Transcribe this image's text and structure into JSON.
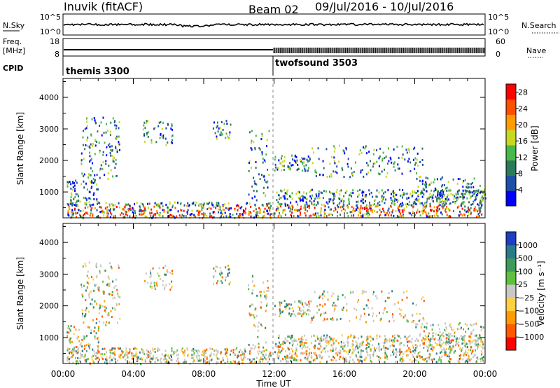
{
  "header": {
    "station": "Inuvik (fitACF)",
    "beam": "Beam 02",
    "date_range": "09/Jul/2016 - 10/Jul/2016"
  },
  "nsky_panel": {
    "label": "N.Sky",
    "right_label": "N.Search",
    "left_ticks": [
      "10^5",
      "10^0"
    ],
    "right_ticks": [
      "10^5",
      "10^0"
    ]
  },
  "freq_panel": {
    "label_lines": [
      "Freq.",
      "[MHz]"
    ],
    "left_ticks": [
      "18",
      "8"
    ],
    "right_ticks": [
      "60",
      "0"
    ],
    "right_label": "Nave"
  },
  "cpid_panel": {
    "label": "CPID",
    "segments": [
      {
        "name": "themis 3300",
        "start_hour": 0,
        "end_hour": 12
      },
      {
        "name": "twofsound 3503",
        "start_hour": 12,
        "end_hour": 24
      }
    ]
  },
  "chart_data": [
    {
      "type": "heatmap",
      "quantity": "Power",
      "ylabel": "Slant Range [km]",
      "ylim": [
        180,
        4600
      ],
      "yticks": [
        "1000",
        "2000",
        "3000",
        "4000"
      ],
      "xlim_hours": [
        0,
        24
      ],
      "colorbar": {
        "label": "Power [dB]",
        "ticks": [
          "4",
          "8",
          "12",
          "16",
          "20",
          "24",
          "28"
        ],
        "range": [
          0,
          30
        ],
        "colors": [
          "#0000ff",
          "#1e4fa8",
          "#2d7a5a",
          "#47b84a",
          "#c8d820",
          "#ff9a00",
          "#ff5000",
          "#ff0000"
        ]
      }
    },
    {
      "type": "heatmap",
      "quantity": "Velocity",
      "ylabel": "Slant Range [km]",
      "ylim": [
        180,
        4600
      ],
      "yticks": [
        "1000",
        "2000",
        "3000",
        "4000"
      ],
      "xlim_hours": [
        0,
        24
      ],
      "colorbar": {
        "label": "Velocity [m s⁻¹]",
        "ticks": [
          "1000",
          "500",
          "100",
          "25",
          "−25",
          "−100",
          "−500",
          "−1000"
        ],
        "colors": [
          "#1e3fbf",
          "#2a7a8a",
          "#3e9a5a",
          "#5fc040",
          "#c8c8c8",
          "#ffd040",
          "#ff9a00",
          "#ff5a00",
          "#ff0000"
        ]
      }
    }
  ],
  "x_axis": {
    "label": "Time UT",
    "ticks": [
      "00:00",
      "04:00",
      "08:00",
      "12:00",
      "16:00",
      "20:00",
      "00:00"
    ]
  }
}
